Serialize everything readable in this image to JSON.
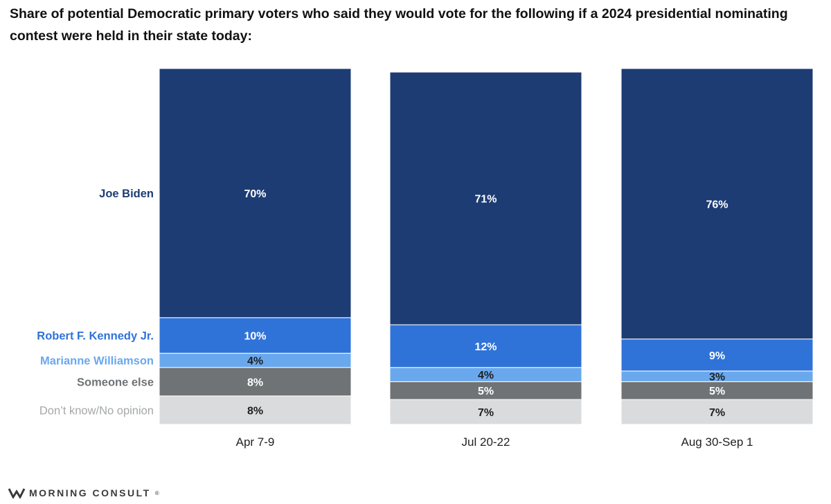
{
  "title": "Share of potential Democratic primary voters who said they would vote for the following if a 2024 presidential nominating contest were held in their state today:",
  "brand": {
    "name": "MORNING CONSULT",
    "mark": "®"
  },
  "colors": {
    "joe_biden": "#1d3c74",
    "robert_f_kennedy_jr": "#2f73d9",
    "marianne_williamson": "#6aa8ee",
    "someone_else": "#6f7375",
    "dont_know": "#dadbdc"
  },
  "chart_data": {
    "type": "bar",
    "stacked": true,
    "orientation": "vertical",
    "title": "Share of potential Democratic primary voters who said they would vote for the following if a 2024 presidential nominating contest were held in their state today:",
    "categories": [
      "Apr 7-9",
      "Jul 20-22",
      "Aug 30-Sep 1"
    ],
    "series": [
      {
        "name": "Joe Biden",
        "key": "joe_biden",
        "values": [
          70,
          71,
          76
        ],
        "labels": [
          "70%",
          "71%",
          "76%"
        ],
        "label_color": "#ffffff",
        "legend_color": "#1d3c74"
      },
      {
        "name": "Robert F. Kennedy Jr.",
        "key": "robert_f_kennedy_jr",
        "values": [
          10,
          12,
          9
        ],
        "labels": [
          "10%",
          "12%",
          "9%"
        ],
        "label_color": "#ffffff",
        "legend_color": "#2f73d9"
      },
      {
        "name": "Marianne Williamson",
        "key": "marianne_williamson",
        "values": [
          4,
          4,
          3
        ],
        "labels": [
          "4%",
          "4%",
          "3%"
        ],
        "label_color": "#1f1f1f",
        "legend_color": "#6aa8ee"
      },
      {
        "name": "Someone else",
        "key": "someone_else",
        "values": [
          8,
          5,
          5
        ],
        "labels": [
          "8%",
          "5%",
          "5%"
        ],
        "label_color": "#ffffff",
        "legend_color": "#6f7375"
      },
      {
        "name": "Don’t know/No opinion",
        "key": "dont_know",
        "values": [
          8,
          7,
          7
        ],
        "labels": [
          "8%",
          "7%",
          "7%"
        ],
        "label_color": "#1f1f1f",
        "legend_color": "#a5a7a9"
      }
    ],
    "xlabel": "",
    "ylabel": "",
    "ylim": [
      0,
      100
    ],
    "grid": false,
    "legend": "left"
  }
}
